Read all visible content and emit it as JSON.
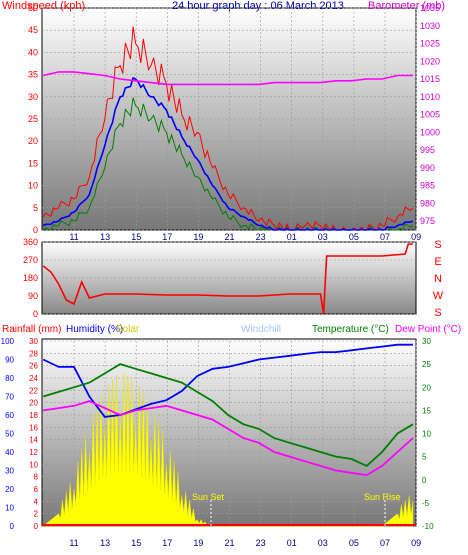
{
  "header": {
    "wind_title": "Windspeed (kph)",
    "date_title": "24 hour graph day : 06 March 2013",
    "baro_title": "Barometer (mb)"
  },
  "bottom_titles": {
    "rainfall": "Rainfall (mm)",
    "humidity": "Humidity (%)",
    "solar": "Solar",
    "windchill": "Windchill",
    "temperature": "Temperature (°C)",
    "dewpoint": "Dew Point (°C)"
  },
  "annotations": {
    "sunset": "Sun Set",
    "sunrise": "Sun Rise"
  },
  "colors": {
    "wind": "#ff0000",
    "gust": "#ff0000",
    "wind_avg": "#0000ff",
    "wind_low": "#008000",
    "barometer": "#ff00ff",
    "direction": "#ff0000",
    "rain": "#ff0000",
    "humidity": "#0000ff",
    "solar": "#ffff00",
    "windchill": "#ffffff",
    "temperature": "#008000",
    "dewpoint": "#ff00ff",
    "axis_rain": "#ff0000",
    "axis_humidity": "#0000ff",
    "axis_temp": "#008000"
  },
  "chart_data": [
    {
      "type": "line",
      "title": "24 hour graph day : 06 March 2013",
      "x_ticks": [
        "11",
        "13",
        "15",
        "17",
        "19",
        "21",
        "23",
        "01",
        "03",
        "05",
        "07",
        "09"
      ],
      "y_left": {
        "label": "Windspeed (kph)",
        "ticks": [
          0,
          5,
          10,
          15,
          20,
          25,
          30,
          35,
          40,
          45,
          50
        ],
        "range": [
          0,
          50
        ]
      },
      "y_right": {
        "label": "Barometer (mb)",
        "ticks": [
          975,
          980,
          985,
          990,
          995,
          1000,
          1005,
          1010,
          1015,
          1020,
          1025,
          1030,
          1035
        ],
        "range": [
          972.5,
          1035
        ]
      },
      "series": [
        {
          "name": "gust",
          "x": [
            9,
            10,
            11,
            12,
            13,
            14,
            15,
            16,
            17,
            18,
            19,
            20,
            21,
            22,
            23,
            24,
            25,
            26,
            27,
            28,
            29,
            30,
            31,
            32,
            33
          ],
          "y": [
            3,
            5,
            7,
            12,
            25,
            37,
            42,
            37,
            33,
            26,
            22,
            14,
            8,
            5,
            2,
            1,
            0,
            1,
            1,
            0,
            0,
            0,
            1,
            3,
            5
          ]
        },
        {
          "name": "average",
          "x": [
            9,
            10,
            11,
            12,
            13,
            14,
            15,
            16,
            17,
            18,
            19,
            20,
            21,
            22,
            23,
            24,
            25,
            26,
            27,
            28,
            29,
            30,
            31,
            32,
            33
          ],
          "y": [
            1,
            2,
            4,
            8,
            19,
            30,
            34,
            30,
            27,
            21,
            16,
            10,
            5,
            3,
            1,
            0,
            0,
            0,
            0,
            0,
            0,
            0,
            0,
            1,
            2
          ]
        },
        {
          "name": "low",
          "x": [
            9,
            10,
            11,
            12,
            13,
            14,
            15,
            16,
            17,
            18,
            19,
            20,
            21,
            22,
            23,
            24,
            25,
            26,
            27,
            28,
            29,
            30,
            31,
            32,
            33
          ],
          "y": [
            0,
            1,
            2,
            5,
            14,
            24,
            28,
            25,
            22,
            17,
            12,
            7,
            3,
            1,
            0,
            0,
            0,
            0,
            0,
            0,
            0,
            0,
            0,
            0,
            1
          ]
        },
        {
          "name": "barometer",
          "x": [
            9,
            10,
            11,
            12,
            13,
            14,
            15,
            16,
            17,
            18,
            19,
            20,
            21,
            22,
            23,
            24,
            25,
            26,
            27,
            28,
            29,
            30,
            31,
            32,
            33
          ],
          "y": [
            1016,
            1017,
            1017,
            1016.5,
            1016,
            1015,
            1014.5,
            1014,
            1013.5,
            1013.5,
            1013.5,
            1013.5,
            1013.5,
            1013.5,
            1013.5,
            1014,
            1014,
            1014,
            1014,
            1014.5,
            1014.5,
            1015,
            1015,
            1016,
            1016
          ]
        }
      ]
    },
    {
      "type": "line",
      "x_ticks": [],
      "y_left": {
        "ticks": [
          0,
          90,
          180,
          270,
          360
        ],
        "range": [
          0,
          360
        ]
      },
      "y_right_labels": [
        "S",
        "E",
        "N",
        "W",
        "S"
      ],
      "series": [
        {
          "name": "direction",
          "x": [
            9,
            9.5,
            10,
            10.5,
            11,
            11.5,
            12,
            13,
            15,
            17,
            19,
            21,
            23,
            25,
            27,
            27.2,
            27.4,
            29,
            31,
            32.5,
            32.7,
            33
          ],
          "y": [
            240,
            210,
            150,
            70,
            50,
            160,
            80,
            100,
            100,
            95,
            95,
            90,
            90,
            100,
            100,
            0,
            290,
            290,
            290,
            300,
            350,
            350
          ]
        }
      ]
    },
    {
      "type": "line",
      "x_ticks": [
        "11",
        "13",
        "15",
        "17",
        "19",
        "21",
        "23",
        "01",
        "03",
        "05",
        "07",
        "09"
      ],
      "y_left_rain": {
        "label": "Rainfall (mm)",
        "ticks": [
          0,
          2,
          4,
          6,
          8,
          10,
          12,
          14,
          16,
          18,
          20,
          22,
          24,
          26,
          28,
          30
        ],
        "range": [
          0,
          30
        ]
      },
      "y_left_humidity": {
        "label": "Humidity (%)",
        "ticks": [
          0,
          10,
          20,
          30,
          40,
          50,
          60,
          70,
          80,
          90,
          100
        ],
        "range": [
          0,
          100
        ]
      },
      "y_right_temp": {
        "label": "Temperature (°C)",
        "ticks": [
          -10,
          -5,
          0,
          5,
          10,
          15,
          20,
          25,
          30
        ],
        "range": [
          -10,
          30
        ]
      },
      "series": [
        {
          "name": "humidity",
          "x": [
            9,
            10,
            11,
            12,
            13,
            14,
            15,
            16,
            17,
            18,
            19,
            20,
            21,
            22,
            23,
            24,
            25,
            26,
            27,
            28,
            29,
            30,
            31,
            32,
            33
          ],
          "y": [
            90,
            86,
            86,
            70,
            59,
            60,
            63,
            66,
            68,
            73,
            81,
            85,
            86,
            88,
            90,
            91,
            92,
            93,
            94,
            94,
            95,
            96,
            97,
            98,
            98
          ]
        },
        {
          "name": "temperature",
          "x": [
            9,
            10,
            11,
            12,
            13,
            14,
            15,
            16,
            17,
            18,
            19,
            20,
            21,
            22,
            23,
            24,
            25,
            26,
            27,
            28,
            29,
            30,
            31,
            32,
            33
          ],
          "y": [
            18,
            19,
            20,
            21,
            23,
            25,
            24,
            23,
            22,
            21,
            19,
            17,
            14,
            12,
            11,
            9,
            8,
            7,
            6,
            5,
            4.5,
            3,
            6,
            10,
            12
          ]
        },
        {
          "name": "dewpoint",
          "x": [
            9,
            10,
            11,
            12,
            13,
            14,
            15,
            16,
            17,
            18,
            19,
            20,
            21,
            22,
            23,
            24,
            25,
            26,
            27,
            28,
            29,
            30,
            31,
            32,
            33
          ],
          "y": [
            15,
            15.5,
            16,
            17,
            15.5,
            14,
            15,
            15.5,
            16,
            15,
            14,
            13,
            11,
            9,
            8,
            6,
            5,
            4,
            3,
            2,
            1.5,
            1,
            3,
            6,
            9
          ]
        },
        {
          "name": "solar",
          "x": [
            9,
            10,
            11,
            12,
            13,
            14,
            15,
            16,
            17,
            18,
            19,
            20,
            21,
            22,
            23,
            24,
            25,
            26,
            27,
            28,
            29,
            30,
            31,
            32,
            33
          ],
          "y": [
            0,
            2,
            6,
            12,
            16,
            18,
            17,
            14,
            10,
            5,
            1,
            0,
            0,
            0,
            0,
            0,
            0,
            0,
            0,
            0,
            0,
            0,
            0,
            2,
            4
          ]
        },
        {
          "name": "rain",
          "x": [
            9,
            33
          ],
          "y": [
            0,
            0
          ]
        }
      ]
    }
  ]
}
